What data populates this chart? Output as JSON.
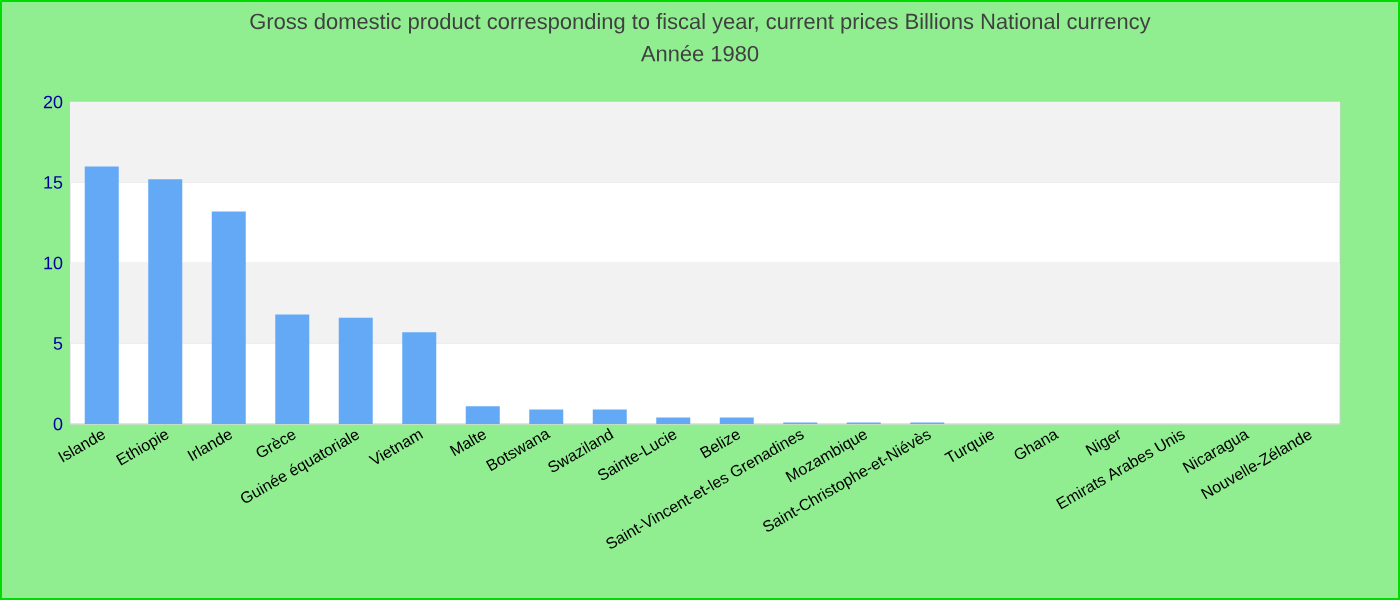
{
  "chart_data": {
    "type": "bar",
    "title": "Gross domestic product corresponding to fiscal year, current prices Billions National currency",
    "subtitle": "Année 1980",
    "categories": [
      "Islande",
      "Ethiopie",
      "Irlande",
      "Grèce",
      "Guinée équatoriale",
      "Vietnam",
      "Malte",
      "Botswana",
      "Swaziland",
      "Sainte-Lucie",
      "Belize",
      "Saint-Vincent-et-les Grenadines",
      "Mozambique",
      "Saint-Christophe-et-Niévès",
      "Turquie",
      "Ghana",
      "Niger",
      "Emirats Arabes Unis",
      "Nicaragua",
      "Nouvelle-Zélande"
    ],
    "values": [
      16.0,
      15.2,
      13.2,
      6.8,
      6.6,
      5.7,
      1.1,
      0.9,
      0.9,
      0.4,
      0.4,
      0.1,
      0.1,
      0.1,
      null,
      null,
      null,
      null,
      null,
      null
    ],
    "color": "#63a9f5",
    "ylim": [
      0,
      20
    ],
    "yticks": [
      0,
      5,
      10,
      15,
      20
    ],
    "grid": "y"
  }
}
